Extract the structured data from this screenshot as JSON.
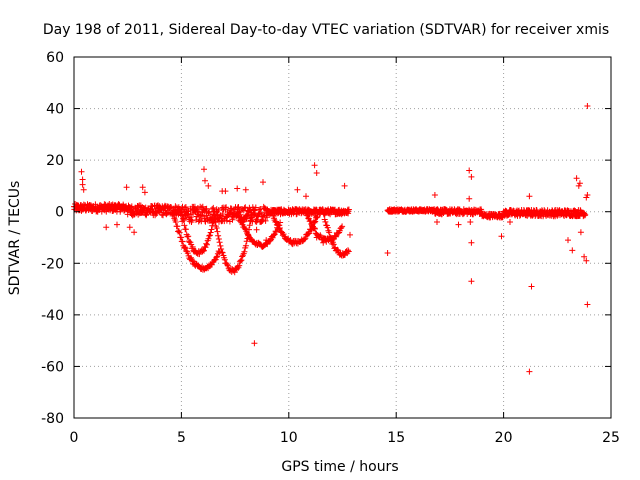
{
  "chart_data": {
    "type": "scatter",
    "title": "Day 198 of 2011, Sidereal Day-to-day VTEC variation (SDTVAR) for receiver xmis",
    "xlabel": "GPS time / hours",
    "ylabel": "SDTVAR / TECUs",
    "xlim": [
      0,
      25
    ],
    "ylim": [
      -80,
      60
    ],
    "xticks": [
      0,
      5,
      10,
      15,
      20,
      25
    ],
    "yticks": [
      -80,
      -60,
      -40,
      -20,
      0,
      20,
      40,
      60
    ],
    "grid": true,
    "marker": "+",
    "color": "#ff0000",
    "series": [
      {
        "name": "xmis",
        "bands": [
          {
            "from": 0.0,
            "to": 2.5,
            "center": 1.5,
            "spread": 3
          },
          {
            "from": 2.5,
            "to": 5.0,
            "center": 0.5,
            "spread": 4
          },
          {
            "from": 5.0,
            "to": 9.0,
            "center": -1,
            "spread": 6
          },
          {
            "from": 9.0,
            "to": 12.8,
            "center": 0,
            "spread": 2
          },
          {
            "from": 14.6,
            "to": 17.0,
            "center": 0.5,
            "spread": 1
          },
          {
            "from": 16.8,
            "to": 19.0,
            "center": 0,
            "spread": 2
          },
          {
            "from": 19.0,
            "to": 20.0,
            "center": -1.5,
            "spread": 1.5
          },
          {
            "from": 20.0,
            "to": 23.8,
            "center": -0.5,
            "spread": 2.5
          }
        ],
        "arcs": [
          {
            "from": 4.6,
            "to": 6.8,
            "min": -22,
            "at": 6.0
          },
          {
            "from": 5.0,
            "to": 6.6,
            "min": -16,
            "at": 5.8
          },
          {
            "from": 6.5,
            "to": 8.3,
            "min": -23,
            "at": 7.4
          },
          {
            "from": 7.6,
            "to": 9.6,
            "min": -13,
            "at": 8.7
          },
          {
            "from": 9.2,
            "to": 11.4,
            "min": -12,
            "at": 10.3
          },
          {
            "from": 10.8,
            "to": 12.5,
            "min": -11,
            "at": 11.8
          },
          {
            "from": 11.6,
            "to": 12.8,
            "min": -16.5,
            "at": 12.5
          }
        ],
        "outliers": [
          [
            0.35,
            15.5
          ],
          [
            0.4,
            12.5
          ],
          [
            0.4,
            10.5
          ],
          [
            0.45,
            8.5
          ],
          [
            2.45,
            9.5
          ],
          [
            3.2,
            9.5
          ],
          [
            3.3,
            7.5
          ],
          [
            1.5,
            -6
          ],
          [
            2.0,
            -5
          ],
          [
            2.6,
            -6
          ],
          [
            2.8,
            -8
          ],
          [
            6.05,
            16.5
          ],
          [
            6.1,
            12
          ],
          [
            6.25,
            10
          ],
          [
            6.9,
            8
          ],
          [
            7.05,
            8
          ],
          [
            7.6,
            9
          ],
          [
            8.0,
            8.5
          ],
          [
            8.8,
            11.5
          ],
          [
            8.4,
            -51
          ],
          [
            8.5,
            -7
          ],
          [
            8.6,
            -12
          ],
          [
            8.95,
            -11
          ],
          [
            10.4,
            8.5
          ],
          [
            10.8,
            6
          ],
          [
            11.2,
            18
          ],
          [
            11.3,
            15
          ],
          [
            11.3,
            -10
          ],
          [
            11.6,
            -12
          ],
          [
            12.6,
            10
          ],
          [
            12.85,
            -9
          ],
          [
            14.6,
            -16
          ],
          [
            16.8,
            6.5
          ],
          [
            16.9,
            -4
          ],
          [
            18.4,
            16
          ],
          [
            18.5,
            13.5
          ],
          [
            18.4,
            5
          ],
          [
            18.45,
            -4
          ],
          [
            18.5,
            -12
          ],
          [
            18.5,
            -27
          ],
          [
            17.9,
            -5
          ],
          [
            19.9,
            -9.5
          ],
          [
            20.3,
            -4
          ],
          [
            21.2,
            6
          ],
          [
            21.3,
            -29
          ],
          [
            21.2,
            -62
          ],
          [
            23.0,
            -11
          ],
          [
            23.2,
            -15
          ],
          [
            23.4,
            13
          ],
          [
            23.5,
            10
          ],
          [
            23.55,
            11
          ],
          [
            23.6,
            -8
          ],
          [
            23.9,
            41
          ],
          [
            23.9,
            6.5
          ],
          [
            23.85,
            5.5
          ],
          [
            23.75,
            -17.5
          ],
          [
            23.85,
            -19
          ],
          [
            23.9,
            -36
          ]
        ]
      }
    ]
  }
}
